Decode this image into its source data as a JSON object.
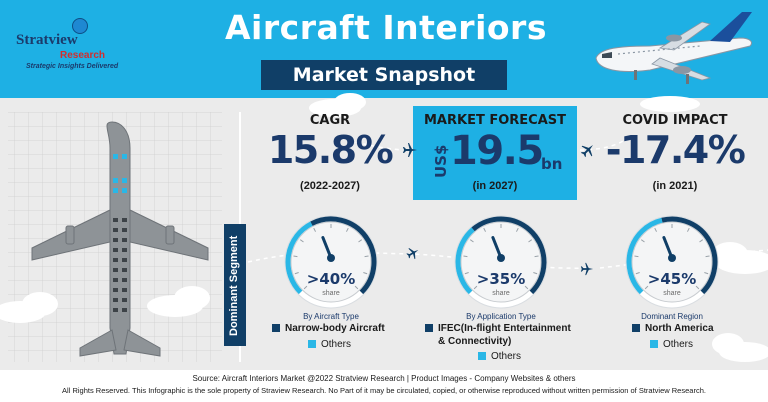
{
  "brand": {
    "name": "Stratview",
    "sub": "Research",
    "tagline": "Strategic Insights Delivered"
  },
  "title": "Aircraft Interiors",
  "subtitle": "Market Snapshot",
  "kpis": {
    "cagr": {
      "label": "CAGR",
      "value": "15.8%",
      "period": "(2022-2027)"
    },
    "forecast": {
      "label": "MARKET FORECAST",
      "currency": "US$",
      "value": "19.5",
      "unit": "bn",
      "period": "(in 2027)"
    },
    "covid": {
      "label": "COVID IMPACT",
      "value": "-17.4%",
      "period": "(in 2021)"
    }
  },
  "dominant_segment": {
    "label": "Dominant Segment",
    "gauges": [
      {
        "value": ">40%",
        "share_label": "share",
        "level_percent": 40,
        "caption": "By Aircraft Type",
        "lead": "Narrow-body Aircraft",
        "others": "Others"
      },
      {
        "value": ">35%",
        "share_label": "share",
        "level_percent": 35,
        "caption": "By Application Type",
        "lead": "IFEC(In-flight Entertainment & Connectivity)",
        "lead_line1": "IFEC(In-flight Entertainment",
        "lead_line2": "& Connectivity)",
        "others": "Others"
      },
      {
        "value": ">45%",
        "share_label": "share",
        "level_percent": 45,
        "caption": "Dominant Region",
        "lead": "North America",
        "others": "Others"
      }
    ]
  },
  "footer": {
    "source": "Source: Aircraft Interiors Market @2022 Stratview Research | Product Images - Company Websites & others",
    "rights": "All Rights Reserved. This Infographic is the sole property of Straview Research. No Part of it may be circulated, copied, or otherwise reproduced without written permission of Stratview Research."
  },
  "colors": {
    "header": "#1eb0e4",
    "navy": "#103f67",
    "accent": "#2ab7e6",
    "grey_background": "#ebebeb"
  },
  "icons": [
    "globe-icon",
    "airplane-icon",
    "small-plane-icon",
    "cloud-icon",
    "aircraft-floorplan-icon",
    "gauge-icon"
  ]
}
